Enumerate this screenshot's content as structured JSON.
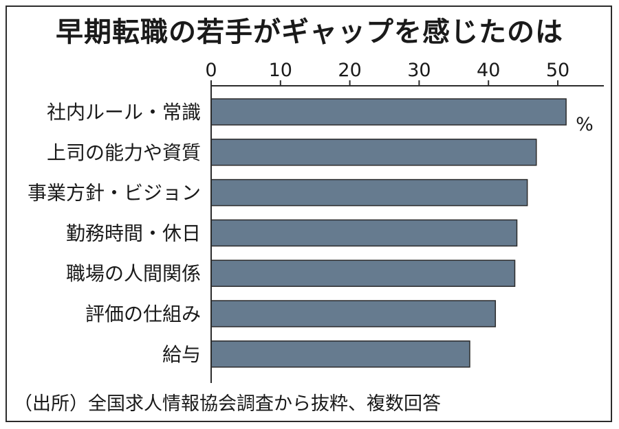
{
  "title": "早期転職の若手がギャップを感じたのは",
  "source_note": "（出所）全国求人情報協会調査から抜粋、複数回答",
  "colors": {
    "bar": "#667b8f",
    "bar_border": "#2b2b2b",
    "axis": "#2b2b2b",
    "text": "#1a1a1a"
  },
  "chart_data": {
    "type": "bar",
    "orientation": "horizontal",
    "unit": "%",
    "categories": [
      "社内ルール・常識",
      "上司の能力や資質",
      "事業方針・ビジョン",
      "勤務時間・休日",
      "職場の人間関係",
      "評価の仕組み",
      "給与"
    ],
    "values": [
      51.2,
      46.9,
      45.6,
      44.1,
      43.8,
      41.0,
      37.3
    ],
    "x_ticks": [
      0,
      10,
      20,
      30,
      40,
      50
    ],
    "xlim": [
      0,
      57
    ],
    "axis_position": "top",
    "grid": false,
    "title": "早期転職の若手がギャップを感じたのは"
  }
}
